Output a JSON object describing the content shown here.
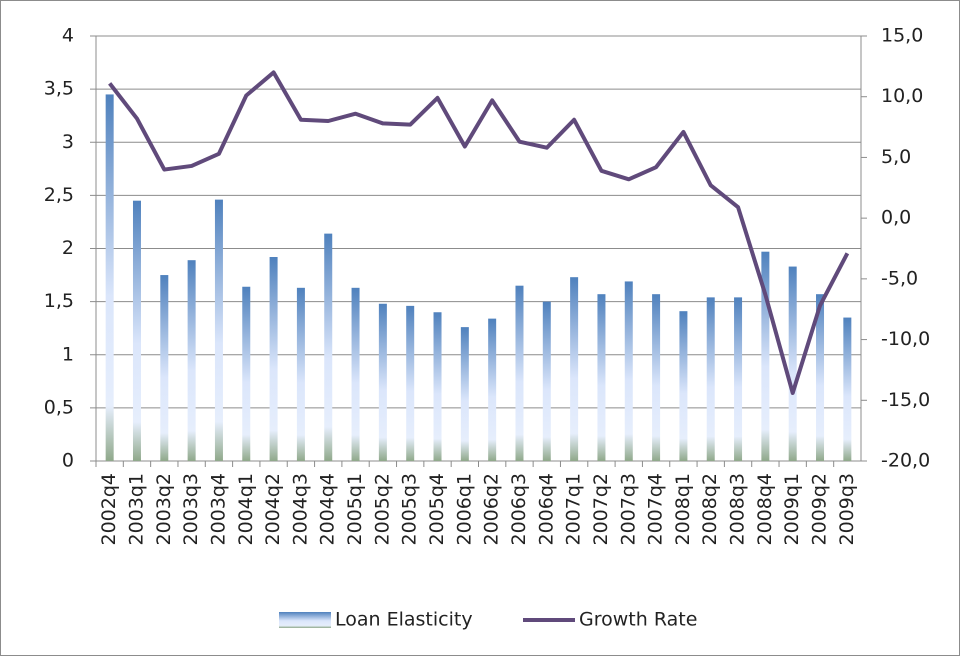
{
  "chart_data": {
    "type": "bar-line",
    "categories": [
      "2002q4",
      "2003q1",
      "2003q2",
      "2003q3",
      "2003q4",
      "2004q1",
      "2004q2",
      "2004q3",
      "2004q4",
      "2005q1",
      "2005q2",
      "2005q3",
      "2005q4",
      "2006q1",
      "2006q2",
      "2006q3",
      "2006q4",
      "2007q1",
      "2007q2",
      "2007q3",
      "2007q4",
      "2008q1",
      "2008q2",
      "2008q3",
      "2008q4",
      "2009q1",
      "2009q2",
      "2009q3"
    ],
    "series": [
      {
        "name": "Loan Elasticity",
        "type": "bar",
        "color": "#4f81bd",
        "values": [
          3.45,
          2.45,
          1.75,
          1.89,
          2.46,
          1.64,
          1.92,
          1.63,
          2.14,
          1.63,
          1.48,
          1.46,
          1.4,
          1.26,
          1.34,
          1.65,
          1.5,
          1.73,
          1.57,
          1.69,
          1.57,
          1.41,
          1.54,
          1.54,
          1.97,
          1.83,
          1.57,
          1.35
        ]
      },
      {
        "name": "Growth Rate",
        "type": "line",
        "axis": "y2",
        "color": "#604a7b",
        "values": [
          11.1,
          8.2,
          4.0,
          4.3,
          5.3,
          10.1,
          12.0,
          8.1,
          8.0,
          8.6,
          7.8,
          7.7,
          9.9,
          5.9,
          9.7,
          6.3,
          5.8,
          8.1,
          3.9,
          3.2,
          4.2,
          7.1,
          2.7,
          0.9,
          -6.3,
          -14.4,
          -7.2,
          -2.9
        ]
      }
    ],
    "ylim": [
      0,
      4
    ],
    "yticks": [
      0,
      {
        "value": 0.5,
        "label": "0,5"
      },
      1,
      {
        "value": 1.5,
        "label": "1,5"
      },
      2,
      {
        "value": 2.5,
        "label": "2,5"
      },
      3,
      {
        "value": 3.5,
        "label": "3,5"
      },
      4
    ],
    "y2lim": [
      -20,
      15
    ],
    "y2ticks": [
      {
        "value": -20,
        "label": "-20,0"
      },
      {
        "value": -15,
        "label": "-15,0"
      },
      {
        "value": -10,
        "label": "-10,0"
      },
      {
        "value": -5,
        "label": "-5,0"
      },
      {
        "value": 0,
        "label": "0,0"
      },
      {
        "value": 5,
        "label": "5,0"
      },
      {
        "value": 10,
        "label": "10,0"
      },
      {
        "value": 15,
        "label": "15,0"
      }
    ],
    "grid": true,
    "legend": "bottom"
  }
}
